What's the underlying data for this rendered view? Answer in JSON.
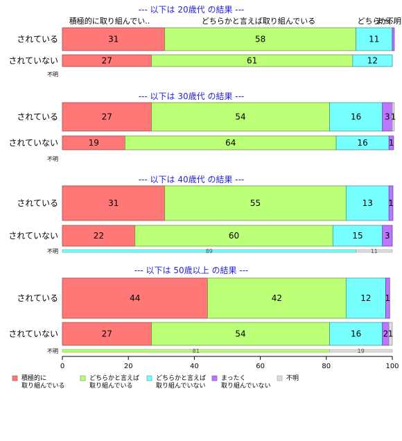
{
  "chart_data": {
    "type": "bar",
    "orientation": "horizontal",
    "stacked": true,
    "xlim": [
      0,
      100
    ],
    "xticks": [
      0,
      20,
      40,
      60,
      80,
      100
    ],
    "category_labels_top": [
      "積極的に取り組んでい..",
      "どちらかと言えば取り組んでいる",
      "どちらか..",
      "まっ..",
      "不明"
    ],
    "legend": {
      "position": "bottom",
      "entries": [
        {
          "line1": "積極的に",
          "line2": "取り組んでいる",
          "color": "#ff7777"
        },
        {
          "line1": "どちらかと言えば",
          "line2": "取り組んでいる",
          "color": "#bbff77"
        },
        {
          "line1": "どちらかと言えば",
          "line2": "取り組んでいない",
          "color": "#77ffff"
        },
        {
          "line1": "まったく",
          "line2": "取り組んでいない",
          "color": "#bb77ff"
        },
        {
          "line1": "不明",
          "line2": "",
          "color": "#dddddd"
        }
      ]
    },
    "groups": [
      {
        "title": "--- 以下は 20歳代 の結果 ---",
        "rows": [
          {
            "label": "されている",
            "values": [
              31,
              58,
              11,
              0.6,
              0
            ],
            "labels": [
              "31",
              "58",
              "11",
              "",
              ""
            ]
          },
          {
            "label": "されていない",
            "values": [
              27,
              61,
              12,
              0,
              0
            ],
            "labels": [
              "27",
              "61",
              "12",
              "",
              ""
            ]
          }
        ],
        "unknown": {
          "label": "不明",
          "values": [],
          "labels": []
        }
      },
      {
        "title": "--- 以下は 30歳代 の結果 ---",
        "rows": [
          {
            "label": "されている",
            "values": [
              27,
              54,
              16,
              3,
              0.6
            ],
            "labels": [
              "27",
              "54",
              "16",
              "3",
              "1"
            ]
          },
          {
            "label": "されていない",
            "values": [
              19,
              64,
              16,
              1.4,
              0
            ],
            "labels": [
              "19",
              "64",
              "16",
              "1",
              ""
            ]
          }
        ],
        "unknown": {
          "label": "不明",
          "values": [],
          "labels": []
        }
      },
      {
        "title": "--- 以下は 40歳代 の結果 ---",
        "rows": [
          {
            "label": "されている",
            "values": [
              31,
              55,
              13,
              1.2,
              0
            ],
            "labels": [
              "31",
              "55",
              "13",
              "1",
              ""
            ]
          },
          {
            "label": "されていない",
            "values": [
              22,
              60,
              15,
              3,
              0
            ],
            "labels": [
              "22",
              "60",
              "15",
              "3",
              ""
            ]
          }
        ],
        "unknown": {
          "label": "不明",
          "values": [
            0,
            0,
            89,
            0,
            11
          ],
          "labels": [
            "",
            "",
            "89",
            "",
            "11"
          ]
        }
      },
      {
        "title": "--- 以下は 50歳以上 の結果 ---",
        "rows": [
          {
            "label": "されている",
            "values": [
              44,
              42,
              12,
              1.2,
              0
            ],
            "labels": [
              "44",
              "42",
              "12",
              "1",
              ""
            ]
          },
          {
            "label": "されていない",
            "values": [
              27,
              54,
              16,
              2,
              1
            ],
            "labels": [
              "27",
              "54",
              "16",
              "2",
              "1"
            ]
          }
        ],
        "unknown": {
          "label": "不明",
          "values": [
            0,
            81,
            0,
            0,
            19
          ],
          "labels": [
            "",
            "81",
            "",
            "",
            "19"
          ]
        }
      }
    ]
  }
}
